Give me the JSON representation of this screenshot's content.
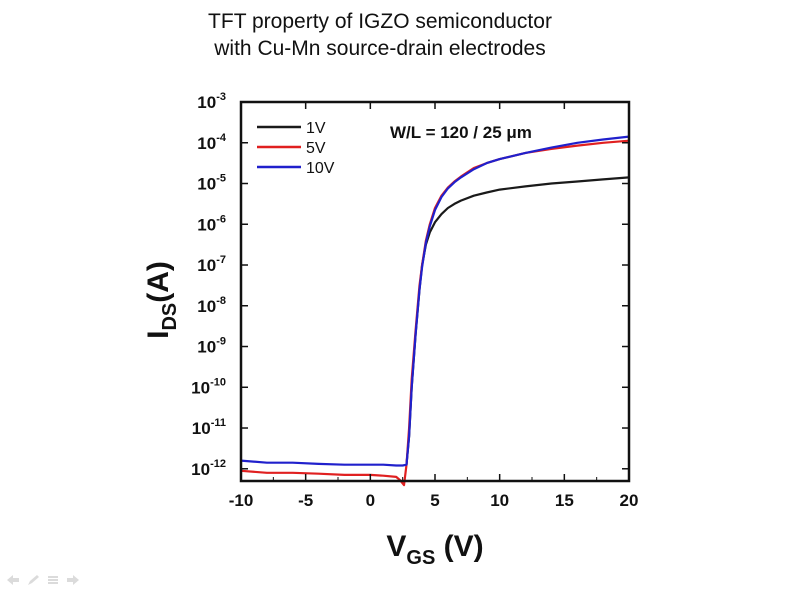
{
  "slide": {
    "title_line1": "TFT property of IGZO semiconductor",
    "title_line2": "with Cu-Mn source-drain electrodes"
  },
  "chart_data": {
    "type": "line",
    "title": "",
    "annotation": "W/L = 120 / 25 μm",
    "xlabel_main": "V",
    "xlabel_sub": "GS",
    "xlabel_unit": " (V)",
    "ylabel_main": "I",
    "ylabel_sub": "DS",
    "ylabel_unit": "(A)",
    "xlim": [
      -10,
      20
    ],
    "ylim_log10": [
      -12.3,
      -3
    ],
    "y_scale": "log",
    "x_ticks": [
      -10,
      -5,
      0,
      5,
      10,
      15,
      20
    ],
    "x_tick_labels": [
      "-10",
      "-5",
      "0",
      "5",
      "10",
      "15",
      "20"
    ],
    "y_ticks": [
      -3,
      -4,
      -5,
      -6,
      -7,
      -8,
      -9,
      -10,
      -11,
      -12
    ],
    "y_tick_labels": [
      {
        "base": "10",
        "exp": "-3"
      },
      {
        "base": "10",
        "exp": "-4"
      },
      {
        "base": "10",
        "exp": "-5"
      },
      {
        "base": "10",
        "exp": "-6"
      },
      {
        "base": "10",
        "exp": "-7"
      },
      {
        "base": "10",
        "exp": "-8"
      },
      {
        "base": "10",
        "exp": "-9"
      },
      {
        "base": "10",
        "exp": "-10"
      },
      {
        "base": "10",
        "exp": "-11"
      },
      {
        "base": "10",
        "exp": "-12"
      }
    ],
    "legend_position": "top-left",
    "grid": false,
    "series": [
      {
        "name": "1V",
        "color": "#1a1a1a",
        "x": [
          2.8,
          3.0,
          3.2,
          3.5,
          3.8,
          4.0,
          4.3,
          4.6,
          5.0,
          5.5,
          6.0,
          6.5,
          7.0,
          8.0,
          9.0,
          10.0,
          12.0,
          14.0,
          16.0,
          18.0,
          20.0
        ],
        "log10_y": [
          -11.9,
          -11.2,
          -10.0,
          -8.7,
          -7.6,
          -7.0,
          -6.5,
          -6.2,
          -5.95,
          -5.75,
          -5.6,
          -5.5,
          -5.42,
          -5.3,
          -5.22,
          -5.15,
          -5.07,
          -5.0,
          -4.95,
          -4.9,
          -4.85
        ]
      },
      {
        "name": "5V",
        "color": "#e02020",
        "x": [
          -10,
          -8,
          -6,
          -4,
          -2,
          0,
          1,
          2,
          2.3,
          2.6,
          2.8,
          3.0,
          3.2,
          3.5,
          3.8,
          4.0,
          4.3,
          4.6,
          5.0,
          5.5,
          6.0,
          6.5,
          7.0,
          8.0,
          9.0,
          10.0,
          12.0,
          14.0,
          16.0,
          18.0,
          20.0
        ],
        "log10_y": [
          -12.05,
          -12.1,
          -12.1,
          -12.12,
          -12.15,
          -12.15,
          -12.17,
          -12.2,
          -12.28,
          -12.4,
          -11.9,
          -11.0,
          -9.8,
          -8.6,
          -7.5,
          -7.0,
          -6.4,
          -6.0,
          -5.6,
          -5.3,
          -5.1,
          -4.95,
          -4.83,
          -4.62,
          -4.5,
          -4.4,
          -4.25,
          -4.15,
          -4.07,
          -4.0,
          -3.95
        ]
      },
      {
        "name": "10V",
        "color": "#2020cc",
        "x": [
          -10,
          -8,
          -6,
          -4,
          -2,
          0,
          1,
          2,
          2.5,
          2.8,
          3.0,
          3.2,
          3.5,
          3.8,
          4.0,
          4.3,
          4.6,
          5.0,
          5.5,
          6.0,
          6.5,
          7.0,
          8.0,
          9.0,
          10.0,
          12.0,
          14.0,
          16.0,
          18.0,
          20.0
        ],
        "log10_y": [
          -11.8,
          -11.85,
          -11.85,
          -11.88,
          -11.9,
          -11.9,
          -11.9,
          -11.92,
          -11.92,
          -11.9,
          -11.2,
          -10.0,
          -8.7,
          -7.6,
          -7.05,
          -6.45,
          -6.05,
          -5.65,
          -5.33,
          -5.12,
          -4.97,
          -4.85,
          -4.65,
          -4.5,
          -4.4,
          -4.25,
          -4.12,
          -4.0,
          -3.92,
          -3.85
        ]
      }
    ]
  }
}
